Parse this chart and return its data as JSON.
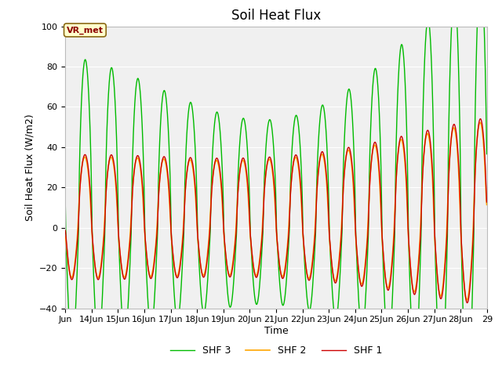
{
  "title": "Soil Heat Flux",
  "ylabel": "Soil Heat Flux (W/m2)",
  "xlabel": "Time",
  "ylim": [
    -40,
    100
  ],
  "yticks": [
    -40,
    -20,
    0,
    20,
    40,
    60,
    80,
    100
  ],
  "shf1_color": "#cc0000",
  "shf2_color": "#ffa500",
  "shf3_color": "#00bb00",
  "fig_bg_color": "#ffffff",
  "plot_bg_color": "#f0f0f0",
  "legend_labels": [
    "SHF 1",
    "SHF 2",
    "SHF 3"
  ],
  "annotation_text": "VR_met",
  "title_fontsize": 12,
  "label_fontsize": 9,
  "tick_fontsize": 8,
  "n_days": 16,
  "start_day": 13,
  "samples_per_day": 144
}
